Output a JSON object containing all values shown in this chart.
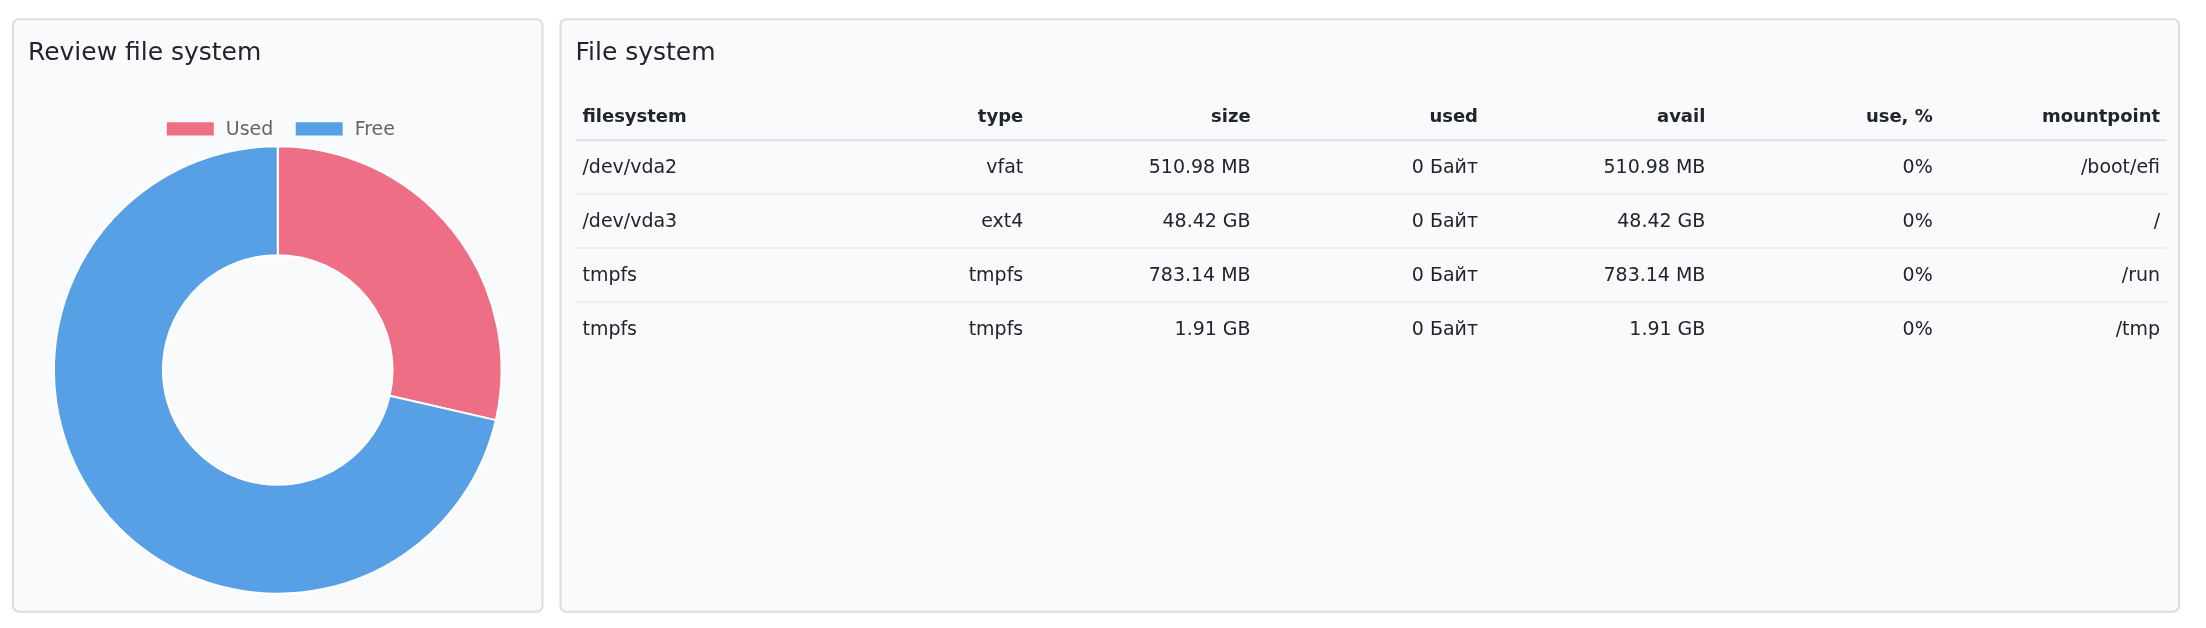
{
  "chart_data": [
    {
      "type": "donut",
      "title": "Review file system",
      "categories": [
        "Used",
        "Free"
      ],
      "values": [
        28.6,
        71.4
      ],
      "colors": [
        "#ed6e85",
        "#57a0e5"
      ],
      "legend": "top"
    },
    {
      "type": "other",
      "title": "File system",
      "categories": [
        "filesystem",
        "type",
        "size",
        "used",
        "avail",
        "use, %",
        "mountpoint"
      ],
      "annotations": [
        "/dev/vda2",
        "vfat",
        "510.98 MB",
        "0 Байт",
        "510.98 MB",
        "0%",
        "/boot/efi",
        "/dev/vda3",
        "ext4",
        "48.42 GB",
        "0 Байт",
        "48.42 GB",
        "0%",
        "/",
        "tmpfs",
        "tmpfs",
        "783.14 MB",
        "0 Байт",
        "783.14 MB",
        "0%",
        "/run",
        "tmpfs",
        "tmpfs",
        "1.91 GB",
        "0 Байт",
        "1.91 GB",
        "0%",
        "/tmp"
      ]
    }
  ]
}
